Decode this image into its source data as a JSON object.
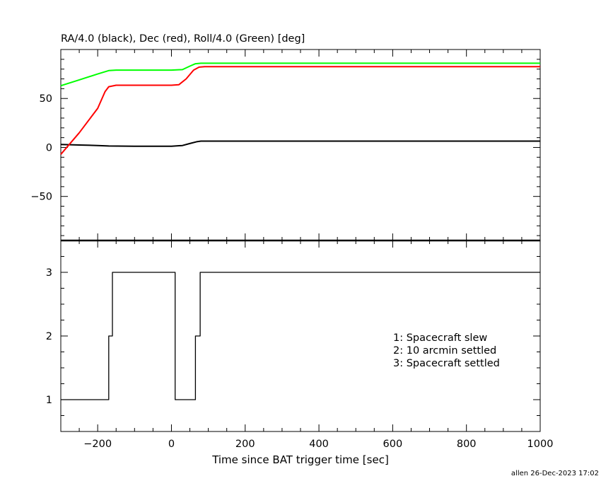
{
  "chart_data": [
    {
      "type": "line",
      "title": "RA/4.0 (black), Dec (red), Roll/4.0 (Green) [deg]",
      "xlim": [
        -300,
        1000
      ],
      "ylim": [
        -95,
        100
      ],
      "yticks": [
        -50,
        0,
        50
      ],
      "series": [
        {
          "name": "RA/4.0",
          "color": "#000000",
          "x": [
            -300,
            -250,
            -200,
            -170,
            -100,
            0,
            30,
            50,
            70,
            80,
            200,
            400,
            600,
            800,
            1000
          ],
          "y": [
            3,
            2.5,
            2,
            1.5,
            1.3,
            1.3,
            2,
            4,
            6,
            6.5,
            6.5,
            6.5,
            6.5,
            6.5,
            6.5
          ]
        },
        {
          "name": "Dec",
          "color": "#ff0000",
          "x": [
            -300,
            -250,
            -200,
            -180,
            -170,
            -150,
            -100,
            0,
            20,
            40,
            60,
            75,
            90,
            200,
            400,
            600,
            800,
            1000
          ],
          "y": [
            -7,
            15,
            40,
            57,
            62,
            63.5,
            63.5,
            63.5,
            64,
            70,
            79,
            82,
            82.5,
            82.5,
            82.5,
            82.5,
            82.5,
            82.5
          ]
        },
        {
          "name": "Roll/4.0",
          "color": "#00ff00",
          "x": [
            -300,
            -250,
            -200,
            -170,
            -150,
            -100,
            0,
            30,
            50,
            65,
            80,
            200,
            400,
            600,
            800,
            1000
          ],
          "y": [
            63,
            69,
            75,
            78.5,
            79,
            79,
            79,
            79.5,
            83,
            85.5,
            86,
            86,
            86,
            86,
            86,
            86
          ]
        }
      ]
    },
    {
      "type": "line",
      "xlabel": "Time since BAT trigger time [sec]",
      "xlim": [
        -300,
        1000
      ],
      "ylim": [
        0.5,
        3.5
      ],
      "yticks": [
        1,
        2,
        3
      ],
      "xticks": [
        -200,
        0,
        200,
        400,
        600,
        800,
        1000
      ],
      "series": [
        {
          "color": "#000000",
          "x": [
            -300,
            -170,
            -170,
            -160,
            -160,
            10,
            10,
            65,
            65,
            78,
            78,
            1000
          ],
          "y": [
            1,
            1,
            2,
            2,
            3,
            3,
            1,
            1,
            2,
            2,
            3,
            3
          ]
        }
      ],
      "annotations": [
        "1: Spacecraft slew",
        "2: 10 arcmin settled",
        "3: Spacecraft settled"
      ]
    }
  ],
  "footer": "allen 26-Dec-2023 17:02"
}
